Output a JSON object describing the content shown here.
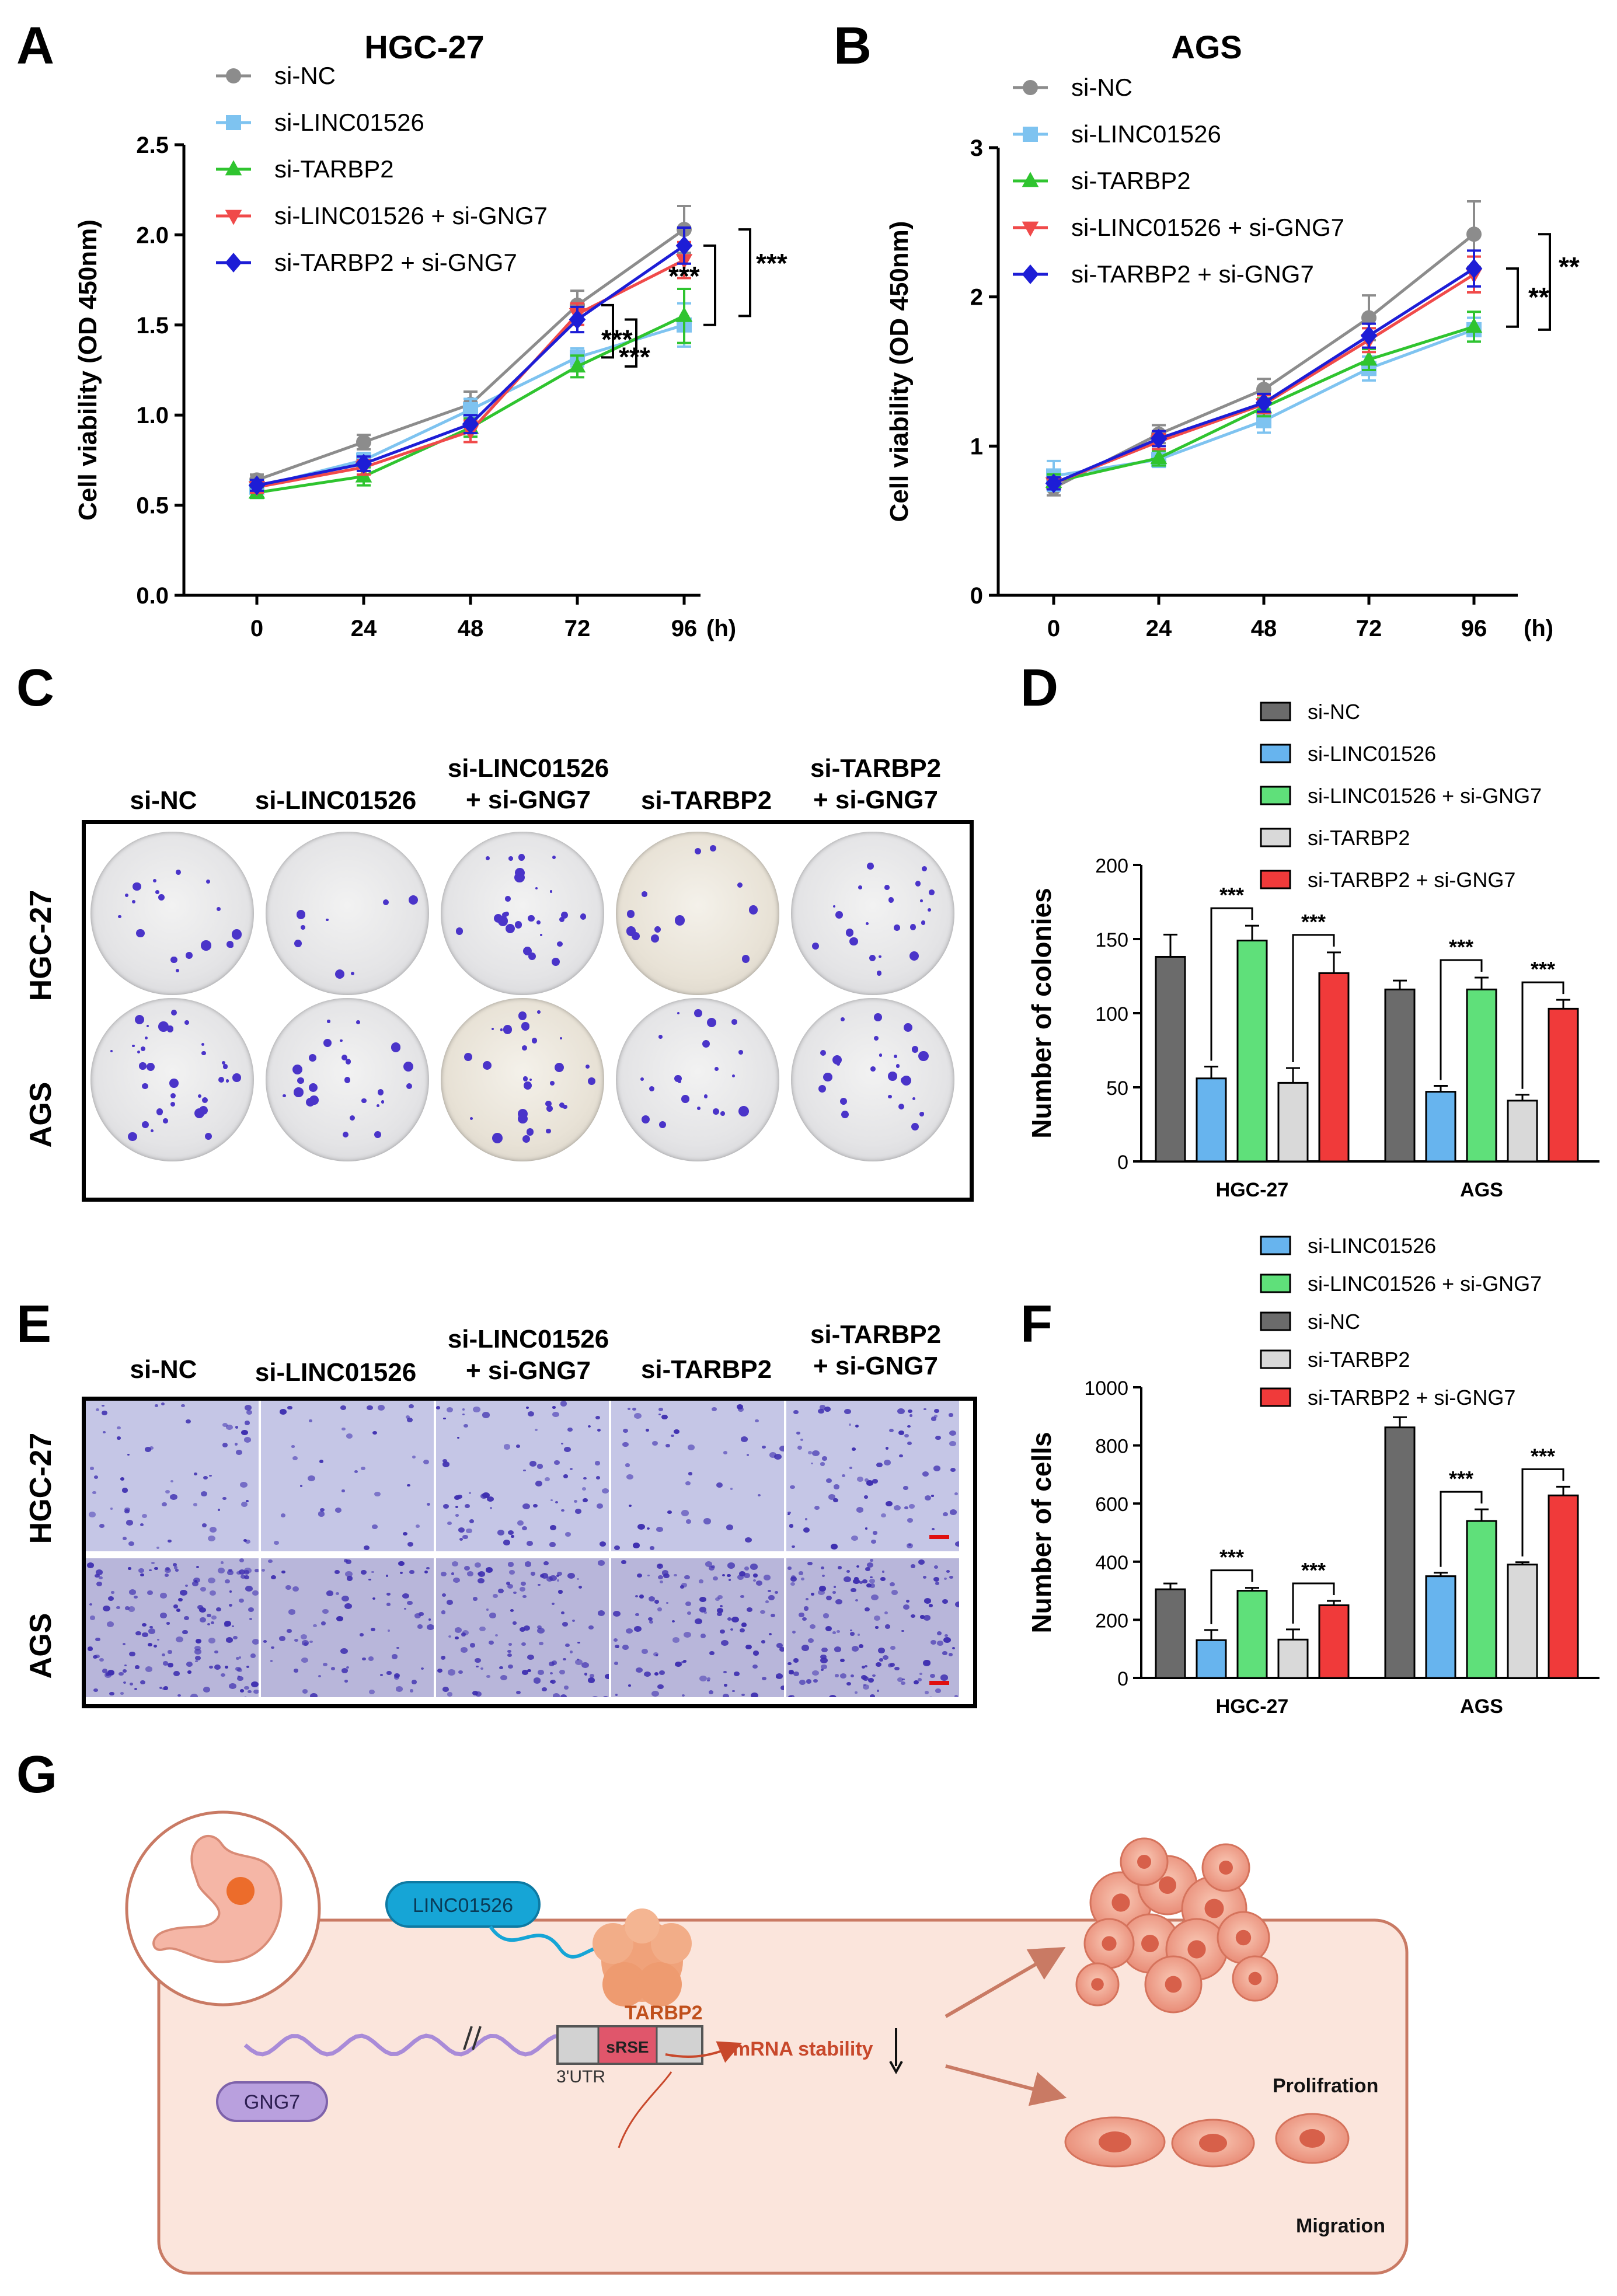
{
  "panels": {
    "A": "A",
    "B": "B",
    "C": "C",
    "D": "D",
    "E": "E",
    "F": "F",
    "G": "G"
  },
  "chart_data": [
    {
      "id": "A",
      "type": "line",
      "title": "HGC-27",
      "xlabel": "(h)",
      "ylabel": "Cell viability (OD 450nm)",
      "x": [
        0,
        24,
        48,
        72,
        96
      ],
      "x_ticks": [
        "0",
        "24",
        "48",
        "72",
        "96"
      ],
      "ylim": [
        0,
        2.5
      ],
      "y_ticks": [
        "0.0",
        "0.5",
        "1.0",
        "1.5",
        "2.0",
        "2.5"
      ],
      "y_tick_values": [
        0,
        0.5,
        1.0,
        1.5,
        2.0,
        2.5
      ],
      "series": [
        {
          "name": "si-NC",
          "values": [
            0.64,
            0.85,
            1.06,
            1.61,
            2.03
          ],
          "error": [
            0.03,
            0.04,
            0.07,
            0.08,
            0.13
          ],
          "color": "#8c8c8c",
          "marker": "circle"
        },
        {
          "name": "si-LINC01526",
          "values": [
            0.6,
            0.75,
            1.03,
            1.32,
            1.5
          ],
          "error": [
            0.03,
            0.04,
            0.06,
            0.05,
            0.12
          ],
          "color": "#7ec3f0",
          "marker": "square"
        },
        {
          "name": "si-TARBP2",
          "values": [
            0.57,
            0.66,
            0.93,
            1.27,
            1.55
          ],
          "error": [
            0.03,
            0.05,
            0.05,
            0.06,
            0.15
          ],
          "color": "#2fc42f",
          "marker": "triangle-up"
        },
        {
          "name": "si-LINC01526 + si-GNG7",
          "values": [
            0.6,
            0.71,
            0.91,
            1.56,
            1.86
          ],
          "error": [
            0.03,
            0.04,
            0.06,
            0.06,
            0.1
          ],
          "color": "#f04a4a",
          "marker": "triangle-down"
        },
        {
          "name": "si-TARBP2 + si-GNG7",
          "values": [
            0.61,
            0.73,
            0.95,
            1.53,
            1.94
          ],
          "error": [
            0.03,
            0.04,
            0.05,
            0.07,
            0.1
          ],
          "color": "#1d1dd6",
          "marker": "diamond"
        }
      ],
      "annotations": [
        "***",
        "***",
        "***",
        "***"
      ]
    },
    {
      "id": "B",
      "type": "line",
      "title": "AGS",
      "xlabel": "(h)",
      "ylabel": "Cell viability (OD 450nm)",
      "x": [
        0,
        24,
        48,
        72,
        96
      ],
      "x_ticks": [
        "0",
        "24",
        "48",
        "72",
        "96"
      ],
      "ylim": [
        0,
        3
      ],
      "y_ticks": [
        "0",
        "1",
        "2",
        "3"
      ],
      "y_tick_values": [
        0,
        1,
        2,
        3
      ],
      "series": [
        {
          "name": "si-NC",
          "values": [
            0.72,
            1.08,
            1.38,
            1.86,
            2.42
          ],
          "error": [
            0.05,
            0.06,
            0.07,
            0.15,
            0.22
          ],
          "color": "#8c8c8c",
          "marker": "circle"
        },
        {
          "name": "si-LINC01526",
          "values": [
            0.8,
            0.91,
            1.17,
            1.52,
            1.78
          ],
          "error": [
            0.1,
            0.05,
            0.08,
            0.08,
            0.08
          ],
          "color": "#7ec3f0",
          "marker": "square"
        },
        {
          "name": "si-TARBP2",
          "values": [
            0.76,
            0.92,
            1.26,
            1.58,
            1.8
          ],
          "error": [
            0.05,
            0.05,
            0.06,
            0.07,
            0.1
          ],
          "color": "#2fc42f",
          "marker": "triangle-up"
        },
        {
          "name": "si-LINC01526 + si-GNG7",
          "values": [
            0.75,
            1.03,
            1.28,
            1.71,
            2.15
          ],
          "error": [
            0.04,
            0.05,
            0.06,
            0.08,
            0.12
          ],
          "color": "#f04a4a",
          "marker": "triangle-down"
        },
        {
          "name": "si-TARBP2 + si-GNG7",
          "values": [
            0.75,
            1.05,
            1.29,
            1.74,
            2.19
          ],
          "error": [
            0.04,
            0.05,
            0.06,
            0.08,
            0.12
          ],
          "color": "#1d1dd6",
          "marker": "diamond"
        }
      ],
      "annotations": [
        "**",
        "**"
      ]
    },
    {
      "id": "D",
      "type": "bar",
      "ylabel": "Number of colonies",
      "categories": [
        "HGC-27",
        "AGS"
      ],
      "ylim": [
        0,
        200
      ],
      "y_ticks": [
        "0",
        "50",
        "100",
        "150",
        "200"
      ],
      "y_tick_values": [
        0,
        50,
        100,
        150,
        200
      ],
      "series": [
        {
          "name": "si-NC",
          "values": [
            138,
            116
          ],
          "error": [
            15,
            6
          ],
          "color": "#6b6b6b"
        },
        {
          "name": "si-LINC01526",
          "values": [
            56,
            47
          ],
          "error": [
            8,
            4
          ],
          "color": "#67b4ee"
        },
        {
          "name": "si-LINC01526 + si-GNG7",
          "values": [
            149,
            116
          ],
          "error": [
            10,
            8
          ],
          "color": "#5fe07a"
        },
        {
          "name": "si-TARBP2",
          "values": [
            53,
            41
          ],
          "error": [
            10,
            4
          ],
          "color": "#d9d9d9"
        },
        {
          "name": "si-TARBP2 + si-GNG7",
          "values": [
            127,
            103
          ],
          "error": [
            14,
            6
          ],
          "color": "#f03a3a"
        }
      ],
      "annotations": [
        "***",
        "***",
        "***",
        "***"
      ]
    },
    {
      "id": "F",
      "type": "bar",
      "ylabel": "Number of cells",
      "categories": [
        "HGC-27",
        "AGS"
      ],
      "ylim": [
        0,
        1000
      ],
      "y_ticks": [
        "0",
        "200",
        "400",
        "600",
        "800",
        "1000"
      ],
      "y_tick_values": [
        0,
        200,
        400,
        600,
        800,
        1000
      ],
      "series": [
        {
          "name": "si-NC",
          "values": [
            305,
            862
          ],
          "error": [
            20,
            35
          ],
          "color": "#6b6b6b"
        },
        {
          "name": "si-LINC01526",
          "values": [
            130,
            350
          ],
          "error": [
            35,
            12
          ],
          "color": "#67b4ee"
        },
        {
          "name": "si-LINC01526 + si-GNG7",
          "values": [
            300,
            540
          ],
          "error": [
            10,
            40
          ],
          "color": "#5fe07a"
        },
        {
          "name": "si-TARBP2",
          "values": [
            132,
            390
          ],
          "error": [
            35,
            8
          ],
          "color": "#d9d9d9"
        },
        {
          "name": "si-TARBP2 + si-GNG7",
          "values": [
            250,
            628
          ],
          "error": [
            15,
            30
          ],
          "color": "#f03a3a"
        }
      ],
      "legend_order": [
        "si-LINC01526",
        "si-LINC01526 + si-GNG7",
        "si-NC",
        "si-TARBP2",
        "si-TARBP2 + si-GNG7"
      ],
      "annotations": [
        "***",
        "***",
        "***",
        "***"
      ]
    }
  ],
  "panel_C": {
    "columns": [
      "si-NC",
      "si-LINC01526",
      "si-LINC01526\n+ si-GNG7",
      "si-TARBP2",
      "si-TARBP2\n+ si-GNG7"
    ],
    "rows": [
      "HGC-27",
      "AGS"
    ]
  },
  "panel_E": {
    "columns": [
      "si-NC",
      "si-LINC01526",
      "si-LINC01526\n+ si-GNG7",
      "si-TARBP2",
      "si-TARBP2\n+ si-GNG7"
    ],
    "rows": [
      "HGC-27",
      "AGS"
    ]
  },
  "panel_G": {
    "lnc_label": "LINC01526",
    "protein_label": "TARBP2",
    "gene_label": "GNG7",
    "element_label": "sRSE",
    "utr_label": "3'UTR",
    "stability_label": "mRNA stability",
    "outcome_1": "Prolifration",
    "outcome_2": "Migration"
  }
}
